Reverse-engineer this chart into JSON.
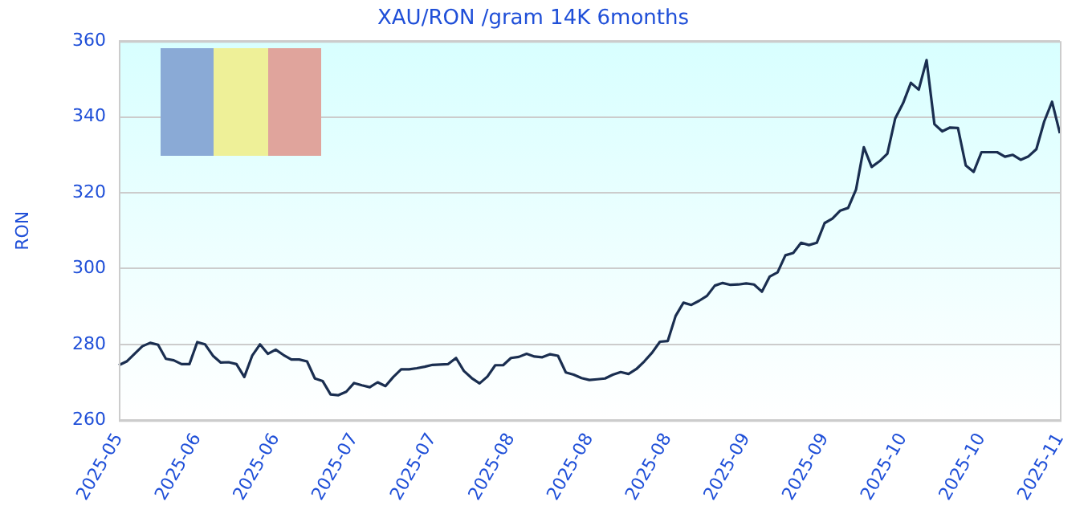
{
  "chart_data": {
    "type": "line",
    "title": "XAU/RON /gram 14K 6months",
    "ylabel": "RON",
    "categories": [
      "2025-05",
      null,
      null,
      null,
      null,
      null,
      null,
      null,
      null,
      null,
      "2025-06",
      null,
      null,
      null,
      null,
      null,
      null,
      null,
      null,
      null,
      "2025-06",
      null,
      null,
      null,
      null,
      null,
      null,
      null,
      null,
      null,
      "2025-07",
      null,
      null,
      null,
      null,
      null,
      null,
      null,
      null,
      null,
      "2025-07",
      null,
      null,
      null,
      null,
      null,
      null,
      null,
      null,
      null,
      "2025-08",
      null,
      null,
      null,
      null,
      null,
      null,
      null,
      null,
      null,
      "2025-08",
      null,
      null,
      null,
      null,
      null,
      null,
      null,
      null,
      null,
      "2025-08",
      null,
      null,
      null,
      null,
      null,
      null,
      null,
      null,
      null,
      "2025-09",
      null,
      null,
      null,
      null,
      null,
      null,
      null,
      null,
      null,
      "2025-09",
      null,
      null,
      null,
      null,
      null,
      null,
      null,
      null,
      null,
      "2025-10",
      null,
      null,
      null,
      null,
      null,
      null,
      null,
      null,
      null,
      "2025-10",
      null,
      null,
      null,
      null,
      null,
      null,
      null,
      null,
      null,
      "2025-11"
    ],
    "series": [
      {
        "color": "#1a2e50",
        "values": [
          274.5,
          275.5,
          277.5,
          279.5,
          280.4,
          279.9,
          276.2,
          275.8,
          274.8,
          274.8,
          280.6,
          280,
          277,
          275.2,
          275.3,
          274.8,
          271.4,
          277,
          280,
          277.5,
          278.6,
          277.2,
          276,
          276,
          275.5,
          271,
          270.3,
          266.8,
          266.6,
          267.5,
          269.8,
          269.2,
          268.7,
          270,
          269,
          271.4,
          273.4,
          273.4,
          273.7,
          274.1,
          274.6,
          274.7,
          274.8,
          276.4,
          273,
          271.1,
          269.7,
          271.5,
          274.5,
          274.5,
          276.4,
          276.7,
          277.5,
          276.8,
          276.6,
          277.4,
          277,
          272.6,
          272,
          271.1,
          270.6,
          270.8,
          271,
          272,
          272.7,
          272.2,
          273.5,
          275.5,
          277.8,
          280.7,
          280.9,
          287.5,
          291,
          290.4,
          291.5,
          292.8,
          295.5,
          296.2,
          295.7,
          295.8,
          296.1,
          295.8,
          293.9,
          297.9,
          299,
          303.5,
          304.1,
          306.8,
          306.2,
          306.8,
          312,
          313.2,
          315.3,
          316,
          320.8,
          332,
          326.8,
          328.3,
          330.3,
          339.6,
          343.6,
          349,
          347.2,
          355,
          338.1,
          336.2,
          337.2,
          337.1,
          327.2,
          325.5,
          330.7,
          330.7,
          330.7,
          329.5,
          330,
          328.7,
          329.6,
          331.5,
          338.8,
          344,
          335.7
        ]
      }
    ],
    "ylim": [
      260,
      360
    ],
    "yticks": [
      260,
      280,
      300,
      320,
      340,
      360
    ],
    "grid": "y",
    "legend": false,
    "marker": "none",
    "line_style": "solid"
  }
}
